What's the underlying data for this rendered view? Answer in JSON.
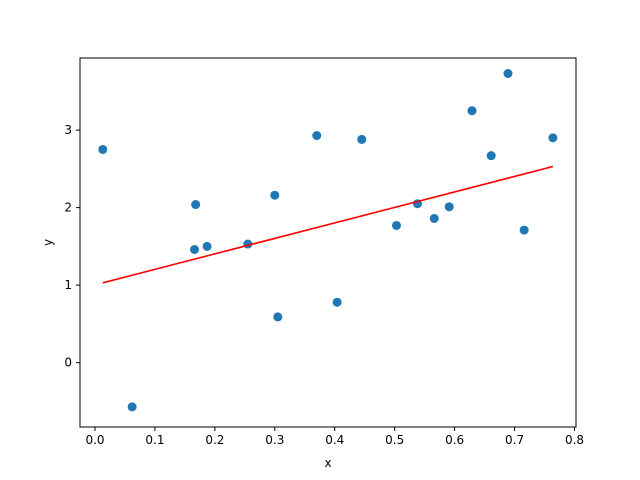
{
  "chart_data": {
    "type": "scatter",
    "xlabel": "x",
    "ylabel": "y",
    "xlim": [
      -0.025,
      0.8025
    ],
    "ylim": [
      -0.83,
      3.93
    ],
    "xticks": [
      "0.0",
      "0.1",
      "0.2",
      "0.3",
      "0.4",
      "0.5",
      "0.6",
      "0.7",
      "0.8"
    ],
    "yticks": [
      "0",
      "1",
      "2",
      "3"
    ],
    "grid": false,
    "point_color": "#1f77b4",
    "line_color": "#ff0000",
    "points": [
      {
        "x": 0.013,
        "y": 2.75
      },
      {
        "x": 0.062,
        "y": -0.57
      },
      {
        "x": 0.166,
        "y": 1.46
      },
      {
        "x": 0.168,
        "y": 2.04
      },
      {
        "x": 0.187,
        "y": 1.5
      },
      {
        "x": 0.255,
        "y": 1.53
      },
      {
        "x": 0.3,
        "y": 2.16
      },
      {
        "x": 0.305,
        "y": 0.59
      },
      {
        "x": 0.37,
        "y": 2.93
      },
      {
        "x": 0.404,
        "y": 0.78
      },
      {
        "x": 0.445,
        "y": 2.88
      },
      {
        "x": 0.503,
        "y": 1.77
      },
      {
        "x": 0.538,
        "y": 2.05
      },
      {
        "x": 0.566,
        "y": 1.86
      },
      {
        "x": 0.591,
        "y": 2.01
      },
      {
        "x": 0.629,
        "y": 3.25
      },
      {
        "x": 0.661,
        "y": 2.67
      },
      {
        "x": 0.689,
        "y": 3.73
      },
      {
        "x": 0.716,
        "y": 1.71
      },
      {
        "x": 0.764,
        "y": 2.9
      }
    ],
    "fit_line": {
      "x": [
        0.013,
        0.764
      ],
      "y": [
        1.03,
        2.53
      ]
    }
  }
}
